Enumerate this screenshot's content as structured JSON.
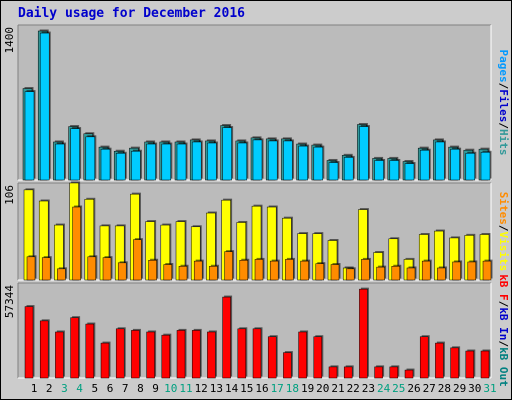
{
  "title": "Daily usage for December 2016",
  "colors": {
    "background": "#cccccc",
    "panel": "#bbbbbb",
    "title": "#0000cc",
    "hits": "#339999",
    "files": "#00ccff",
    "pages": "#0099ff",
    "visits": "#ffff00",
    "sites": "#ff8c00",
    "kb_f": "#ff0000",
    "kb_in": "#0000cc",
    "kb_out": "#008080",
    "weekend": "#00a080",
    "weekday": "#000000"
  },
  "chart_data": [
    {
      "type": "bar",
      "panel": "hits-files-pages",
      "y_top_label": "1400",
      "legend": [
        {
          "label": "Pages",
          "color": "#0099ff"
        },
        {
          "label": "/",
          "color": "#000000"
        },
        {
          "label": "Files",
          "color": "#0000cc"
        },
        {
          "label": "/",
          "color": "#000000"
        },
        {
          "label": "Hits",
          "color": "#339999"
        }
      ],
      "ymax": 1450,
      "categories": [
        "1",
        "2",
        "3",
        "4",
        "5",
        "6",
        "7",
        "8",
        "9",
        "10",
        "11",
        "12",
        "13",
        "14",
        "15",
        "16",
        "17",
        "18",
        "19",
        "20",
        "21",
        "22",
        "23",
        "24",
        "25",
        "26",
        "27",
        "28",
        "29",
        "30",
        "31"
      ],
      "series": [
        {
          "name": "Hits",
          "color": "#339999",
          "values": [
            890,
            1450,
            370,
            520,
            450,
            320,
            280,
            310,
            370,
            370,
            370,
            390,
            380,
            530,
            380,
            410,
            400,
            400,
            350,
            340,
            190,
            240,
            540,
            210,
            210,
            180,
            310,
            390,
            320,
            290,
            300
          ]
        },
        {
          "name": "Files",
          "color": "#00ccff",
          "values": [
            860,
            1430,
            350,
            500,
            420,
            300,
            260,
            280,
            350,
            350,
            350,
            370,
            360,
            510,
            360,
            390,
            380,
            380,
            330,
            320,
            170,
            220,
            520,
            190,
            190,
            160,
            290,
            370,
            300,
            260,
            270
          ]
        },
        {
          "name": "Pages",
          "color": "#0099ff",
          "values": [
            0,
            0,
            0,
            0,
            0,
            0,
            0,
            0,
            0,
            0,
            0,
            0,
            0,
            0,
            0,
            0,
            0,
            0,
            0,
            0,
            0,
            0,
            0,
            0,
            0,
            0,
            0,
            0,
            0,
            0,
            0
          ]
        }
      ]
    },
    {
      "type": "bar",
      "panel": "visits-sites",
      "y_top_label": "106",
      "legend": [
        {
          "label": "Sites",
          "color": "#ff8c00"
        },
        {
          "label": "/",
          "color": "#000000"
        },
        {
          "label": "Visits",
          "color": "#ffff00"
        }
      ],
      "ymax": 106,
      "categories": [
        "1",
        "2",
        "3",
        "4",
        "5",
        "6",
        "7",
        "8",
        "9",
        "10",
        "11",
        "12",
        "13",
        "14",
        "15",
        "16",
        "17",
        "18",
        "19",
        "20",
        "21",
        "22",
        "23",
        "24",
        "25",
        "26",
        "27",
        "28",
        "29",
        "30",
        "31"
      ],
      "series": [
        {
          "name": "Visits",
          "color": "#ffff00",
          "values": [
            105,
            92,
            64,
            113,
            94,
            63,
            63,
            100,
            68,
            64,
            68,
            62,
            78,
            93,
            67,
            86,
            85,
            72,
            54,
            54,
            46,
            14,
            82,
            32,
            48,
            24,
            53,
            57,
            49,
            52,
            53
          ]
        },
        {
          "name": "Sites",
          "color": "#ff8c00",
          "values": [
            27,
            26,
            13,
            85,
            27,
            26,
            20,
            47,
            23,
            18,
            16,
            22,
            16,
            33,
            23,
            24,
            22,
            24,
            22,
            19,
            18,
            13,
            24,
            15,
            16,
            14,
            22,
            14,
            21,
            21,
            22
          ]
        }
      ]
    },
    {
      "type": "bar",
      "panel": "kbf-kbin-kbout",
      "y_top_label": "57344",
      "legend": [
        {
          "label": "kB F",
          "color": "#ff0000"
        },
        {
          "label": "/",
          "color": "#000000"
        },
        {
          "label": "kB In",
          "color": "#0000cc"
        },
        {
          "label": "/",
          "color": "#000000"
        },
        {
          "label": "kB Out",
          "color": "#008080"
        }
      ],
      "ymax": 57344,
      "categories": [
        "1",
        "2",
        "3",
        "4",
        "5",
        "6",
        "7",
        "8",
        "9",
        "10",
        "11",
        "12",
        "13",
        "14",
        "15",
        "16",
        "17",
        "18",
        "19",
        "20",
        "21",
        "22",
        "23",
        "24",
        "25",
        "26",
        "27",
        "28",
        "29",
        "30",
        "31"
      ],
      "series": [
        {
          "name": "kB F",
          "color": "#ff0000",
          "values": [
            45000,
            36000,
            29000,
            38000,
            34000,
            22000,
            31000,
            30000,
            29000,
            27000,
            30000,
            30000,
            29000,
            51000,
            31000,
            31000,
            26000,
            16000,
            29000,
            26000,
            7000,
            7000,
            56000,
            7000,
            7000,
            5000,
            26000,
            22000,
            19000,
            17000,
            17000
          ]
        }
      ]
    }
  ],
  "x_axis_days": [
    {
      "day": "1",
      "weekend": false
    },
    {
      "day": "2",
      "weekend": false
    },
    {
      "day": "3",
      "weekend": true
    },
    {
      "day": "4",
      "weekend": true
    },
    {
      "day": "5",
      "weekend": false
    },
    {
      "day": "6",
      "weekend": false
    },
    {
      "day": "7",
      "weekend": false
    },
    {
      "day": "8",
      "weekend": false
    },
    {
      "day": "9",
      "weekend": false
    },
    {
      "day": "10",
      "weekend": true
    },
    {
      "day": "11",
      "weekend": true
    },
    {
      "day": "12",
      "weekend": false
    },
    {
      "day": "13",
      "weekend": false
    },
    {
      "day": "14",
      "weekend": false
    },
    {
      "day": "15",
      "weekend": false
    },
    {
      "day": "16",
      "weekend": false
    },
    {
      "day": "17",
      "weekend": true
    },
    {
      "day": "18",
      "weekend": true
    },
    {
      "day": "19",
      "weekend": false
    },
    {
      "day": "20",
      "weekend": false
    },
    {
      "day": "21",
      "weekend": false
    },
    {
      "day": "22",
      "weekend": false
    },
    {
      "day": "23",
      "weekend": false
    },
    {
      "day": "24",
      "weekend": true
    },
    {
      "day": "25",
      "weekend": true
    },
    {
      "day": "26",
      "weekend": false
    },
    {
      "day": "27",
      "weekend": false
    },
    {
      "day": "28",
      "weekend": false
    },
    {
      "day": "29",
      "weekend": false
    },
    {
      "day": "30",
      "weekend": false
    },
    {
      "day": "31",
      "weekend": true
    }
  ]
}
